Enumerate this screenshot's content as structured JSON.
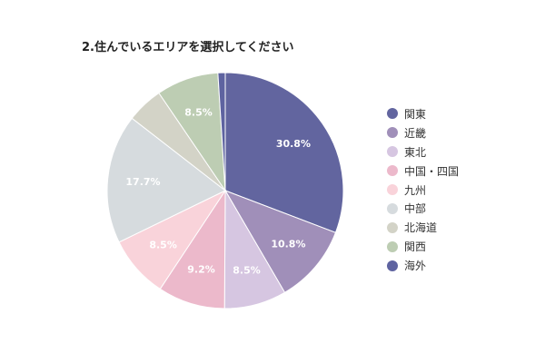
{
  "chart_data": {
    "type": "pie",
    "title": "2.住んでいるエリアを選択してください",
    "legend_position": "right",
    "categories": [
      "関東",
      "近畿",
      "東北",
      "中国・四国",
      "九州",
      "中部",
      "北海道",
      "関西",
      "海外"
    ],
    "values": [
      30.8,
      10.8,
      8.5,
      9.2,
      8.5,
      17.7,
      5.0,
      8.5,
      1.0
    ],
    "data_labels": [
      "30.8%",
      "10.8%",
      "8.5%",
      "9.2%",
      "8.5%",
      "17.7%",
      "",
      "8.5%",
      ""
    ],
    "colors": [
      "#62659f",
      "#a08fb9",
      "#d6c6e1",
      "#ecb9cb",
      "#f9d3da",
      "#d6dbde",
      "#d3d3c7",
      "#bdcdb3",
      "#5e63a0"
    ]
  }
}
